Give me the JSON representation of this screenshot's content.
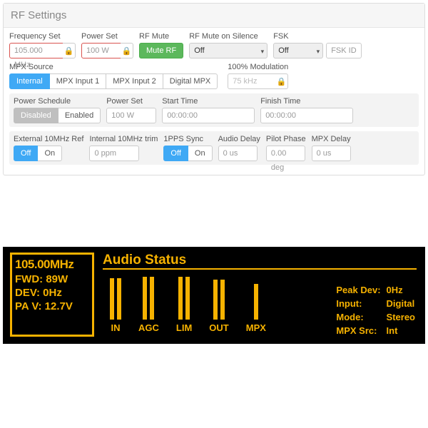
{
  "panel": {
    "title": "RF Settings",
    "freq": {
      "label": "Frequency Set",
      "value": "105.000 MHz"
    },
    "power": {
      "label": "Power Set",
      "value": "100 W"
    },
    "rfmute": {
      "label": "RF Mute",
      "btn": "Mute RF"
    },
    "mutesil": {
      "label": "RF Mute on Silence",
      "value": "Off"
    },
    "fsk": {
      "label": "FSK",
      "value": "Off",
      "placeholder": "FSK ID"
    },
    "mpx": {
      "label": "MPX Source",
      "opts": [
        "Internal",
        "MPX Input 1",
        "MPX Input 2",
        "Digital MPX"
      ],
      "active": 0
    },
    "mod100": {
      "label": "100% Modulation",
      "value": "75 kHz"
    },
    "sched": {
      "label": "Power Schedule",
      "opts": [
        "Disabled",
        "Enabled"
      ],
      "active": 0,
      "power": {
        "label": "Power Set",
        "value": "100 W"
      },
      "start": {
        "label": "Start Time",
        "value": "00:00:00"
      },
      "end": {
        "label": "Finish Time",
        "value": "00:00:00"
      }
    },
    "ref10": {
      "label": "External 10MHz Ref",
      "opts": [
        "Off",
        "On"
      ],
      "active": 0
    },
    "trim10": {
      "label": "Internal 10MHz trim",
      "value": "0 ppm"
    },
    "pps": {
      "label": "1PPS Sync",
      "opts": [
        "Off",
        "On"
      ],
      "active": 0
    },
    "adelay": {
      "label": "Audio Delay",
      "value": "0 us"
    },
    "pilot": {
      "label": "Pilot Phase",
      "value": "0.00 deg"
    },
    "mpxdly": {
      "label": "MPX Delay",
      "value": "0 us"
    }
  },
  "lcd": {
    "freq": "105.00MHz",
    "fwd": "FWD: 89W",
    "dev": "DEV: 0Hz",
    "pav": "PA V: 12.7V",
    "title": "Audio Status",
    "meters": [
      {
        "label": "IN",
        "bars": [
          58,
          58
        ]
      },
      {
        "label": "AGC",
        "bars": [
          60,
          60
        ]
      },
      {
        "label": "LIM",
        "bars": [
          60,
          60
        ]
      },
      {
        "label": "OUT",
        "bars": [
          56,
          56
        ]
      },
      {
        "label": "MPX",
        "bars": [
          50
        ]
      }
    ],
    "info": {
      "peak": {
        "k": "Peak Dev:",
        "v": "0Hz"
      },
      "input": {
        "k": "Input:",
        "v": "Digital"
      },
      "mode": {
        "k": "Mode:",
        "v": "Stereo"
      },
      "src": {
        "k": "MPX Src:",
        "v": "Int"
      }
    },
    "colors": {
      "bg": "#000000",
      "fg": "#f6b200"
    }
  }
}
